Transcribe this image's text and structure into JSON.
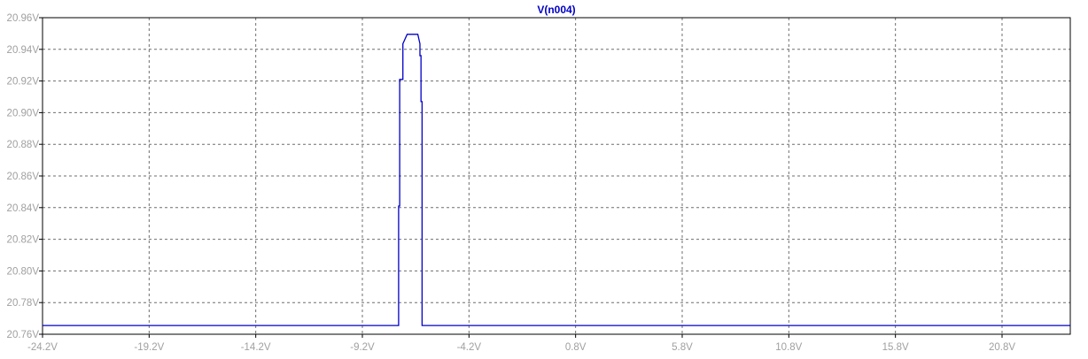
{
  "chart_data": {
    "type": "line",
    "title": "V(n004)",
    "xlabel": "",
    "ylabel": "",
    "grid": true,
    "xlim": [
      -24.2,
      24.0
    ],
    "ylim": [
      20.76,
      20.96
    ],
    "x_ticks": [
      "-24.2V",
      "-19.2V",
      "-14.2V",
      "-9.2V",
      "-4.2V",
      "0.8V",
      "5.8V",
      "10.8V",
      "15.8V",
      "20.8V"
    ],
    "x_tick_values": [
      -24.2,
      -19.2,
      -14.2,
      -9.2,
      -4.2,
      0.8,
      5.8,
      10.8,
      15.8,
      20.8
    ],
    "y_ticks": [
      "20.96V",
      "20.94V",
      "20.92V",
      "20.90V",
      "20.88V",
      "20.86V",
      "20.84V",
      "20.82V",
      "20.80V",
      "20.78V",
      "20.76V"
    ],
    "y_tick_values": [
      20.96,
      20.94,
      20.92,
      20.9,
      20.88,
      20.86,
      20.84,
      20.82,
      20.8,
      20.78,
      20.76
    ],
    "series": [
      {
        "name": "V(n004)",
        "color": "#0000c8",
        "x": [
          -24.2,
          -7.5,
          -7.5,
          -7.45,
          -7.45,
          -7.3,
          -7.3,
          -7.1,
          -6.6,
          -6.5,
          -6.5,
          -6.45,
          -6.45,
          -6.4,
          -6.4,
          24.0
        ],
        "y": [
          20.7655,
          20.7655,
          20.841,
          20.841,
          20.921,
          20.921,
          20.9435,
          20.9495,
          20.9495,
          20.9435,
          20.936,
          20.936,
          20.907,
          20.907,
          20.7655,
          20.7655
        ]
      }
    ]
  }
}
